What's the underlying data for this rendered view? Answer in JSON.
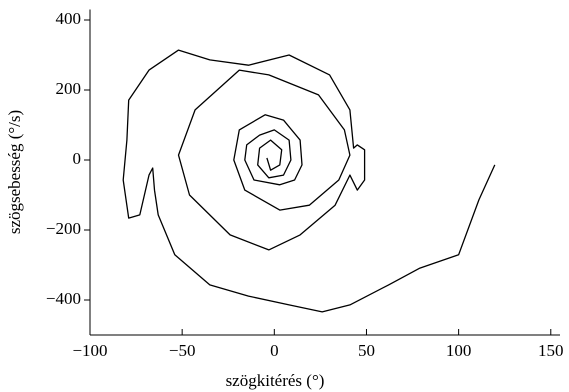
{
  "chart_data": {
    "type": "line",
    "xlabel": "szögkitérés (°)",
    "ylabel": "szögsebesség (°/s)",
    "xlim": [
      -100,
      155
    ],
    "ylim": [
      -500,
      430
    ],
    "xticks": [
      {
        "value": -100,
        "label": "−100"
      },
      {
        "value": -50,
        "label": "−50"
      },
      0,
      50,
      100,
      150
    ],
    "yticks": [
      {
        "value": -400,
        "label": "−400"
      },
      {
        "value": -200,
        "label": "−200"
      },
      0,
      200,
      400
    ],
    "color": "#000000",
    "x": [
      119.6,
      111,
      100,
      79,
      62,
      41,
      26,
      8,
      -14,
      -35,
      -54,
      -63,
      -65,
      -66,
      -68,
      -73,
      -79,
      -82,
      -80,
      -79,
      -68,
      -52,
      -35,
      -14,
      8,
      30,
      41,
      43,
      45,
      49,
      49,
      45,
      41,
      33,
      14,
      -3,
      -24,
      -46,
      -52,
      -43,
      -19,
      -3,
      24,
      38,
      41,
      35,
      19,
      3,
      -16,
      -22,
      -19,
      -5,
      5,
      14,
      15,
      11,
      3,
      -11,
      -16,
      -15,
      -8,
      0,
      8,
      9,
      5,
      -3,
      -9,
      -8,
      -2,
      4,
      3,
      -2,
      -4
    ],
    "values": [
      -14,
      -114,
      -271,
      -309,
      -357,
      -414,
      -434,
      -414,
      -389,
      -357,
      -271,
      -157,
      -86,
      -23,
      -43,
      -157,
      -166,
      -57,
      57,
      171,
      257,
      314,
      286,
      271,
      300,
      243,
      143,
      34,
      43,
      29,
      -57,
      -86,
      -43,
      -129,
      -214,
      -257,
      -214,
      -100,
      14,
      143,
      257,
      243,
      186,
      86,
      14,
      -57,
      -129,
      -143,
      -86,
      0,
      86,
      129,
      114,
      57,
      -14,
      -57,
      -71,
      -57,
      0,
      43,
      71,
      86,
      57,
      0,
      -43,
      -51,
      -14,
      34,
      57,
      29,
      -14,
      -29,
      6
    ]
  }
}
